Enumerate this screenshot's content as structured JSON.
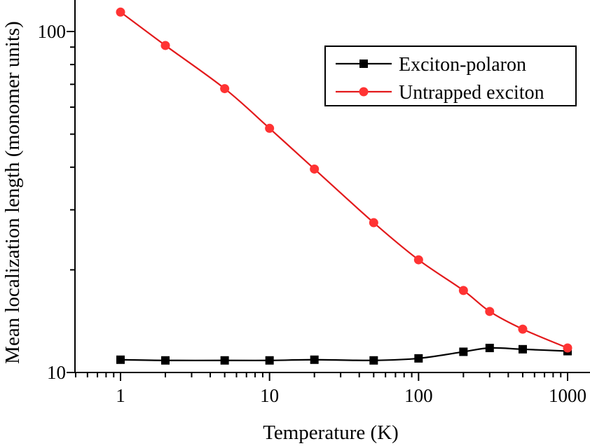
{
  "chart_data": {
    "type": "line",
    "title": "",
    "xlabel": "Temperature (K)",
    "ylabel": "Mean localization length (monomer units)",
    "xscale": "log",
    "yscale": "log",
    "xlim": [
      0.5,
      1000
    ],
    "ylim": [
      10,
      120
    ],
    "xticks": [
      1,
      10,
      100,
      1000
    ],
    "xtick_labels": [
      "1",
      "10",
      "100",
      "1000"
    ],
    "yticks": [
      10,
      100
    ],
    "ytick_labels": [
      "10",
      "100"
    ],
    "legend_position": "top-right",
    "x": [
      1,
      2,
      5,
      10,
      20,
      50,
      100,
      200,
      300,
      500,
      1000
    ],
    "series": [
      {
        "name": "Exciton-polaron",
        "color": "#000000",
        "line_color": "#000000",
        "marker": "square",
        "values": [
          10.9,
          10.85,
          10.85,
          10.85,
          10.9,
          10.85,
          11.0,
          11.5,
          11.8,
          11.7,
          11.55
        ]
      },
      {
        "name": "Untrapped exciton",
        "color": "#ff3333",
        "line_color": "#e31a1c",
        "marker": "circle",
        "values": [
          114,
          91,
          68,
          52,
          39.5,
          27.5,
          21.4,
          17.4,
          15.1,
          13.4,
          11.8
        ]
      }
    ]
  }
}
